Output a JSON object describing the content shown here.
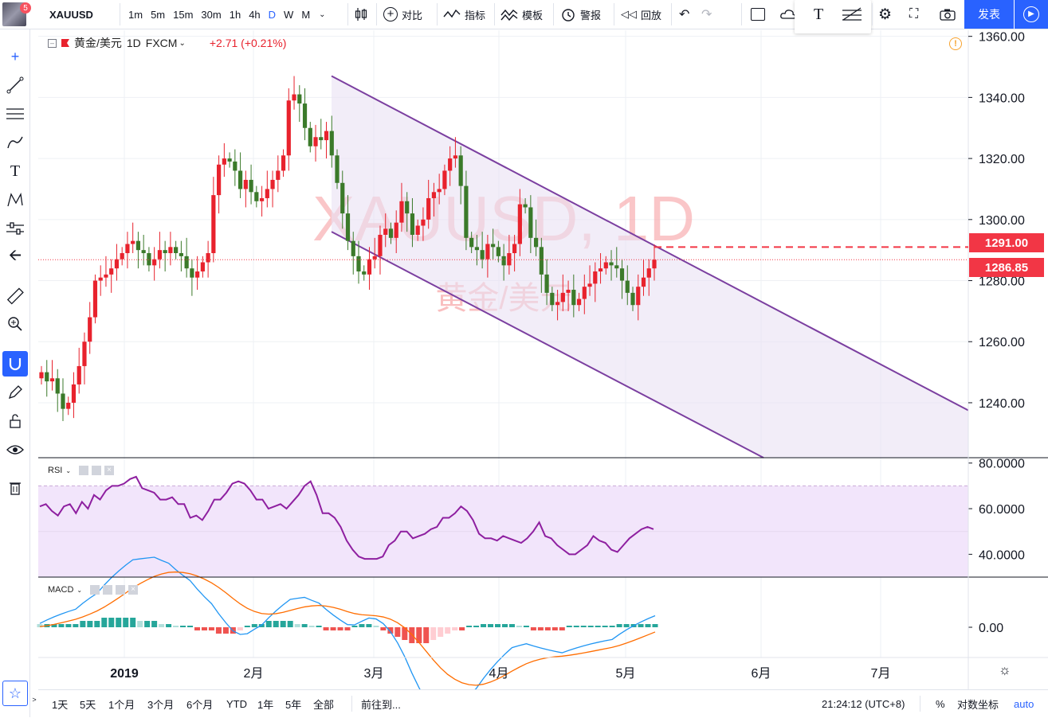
{
  "header": {
    "notification_count": "5",
    "symbol": "XAUUSD",
    "intervals": [
      "1m",
      "5m",
      "15m",
      "30m",
      "1h",
      "4h",
      "D",
      "W",
      "M"
    ],
    "active_interval": "D",
    "compare_label": "对比",
    "indicators_label": "指标",
    "templates_label": "模板",
    "alert_label": "警报",
    "replay_label": "回放",
    "publish_label": "发表"
  },
  "legend": {
    "name": "黄金/美元",
    "interval": "1D",
    "exchange": "FXCM",
    "change": "+2.71 (+0.21%)"
  },
  "watermark": {
    "symbol": "XAUUSD, 1D",
    "name": "黄金/美元"
  },
  "price_axis": {
    "ticks": [
      "1360.00",
      "1340.00",
      "1320.00",
      "1300.00",
      "1280.00",
      "1260.00",
      "1240.00"
    ],
    "alert_price": "1291.00",
    "last_price": "1286.85"
  },
  "rsi": {
    "label": "RSI",
    "ticks": [
      "80.0000",
      "60.0000",
      "40.0000"
    ]
  },
  "macd": {
    "label": "MACD",
    "ticks": [
      "0.00"
    ]
  },
  "time_axis": {
    "labels": [
      "2019",
      "2月",
      "3月",
      "4月",
      "5月",
      "6月",
      "7月"
    ]
  },
  "bottom": {
    "ranges": [
      "1天",
      "5天",
      "1个月",
      "3个月",
      "6个月",
      "YTD",
      "1年",
      "5年",
      "全部"
    ],
    "goto": "前往到...",
    "clock": "21:24:12 (UTC+8)",
    "percent": "%",
    "log": "对数坐标",
    "auto": "auto"
  },
  "colors": {
    "up": "#e8222d",
    "down": "#3b7a2a",
    "channel": "#7b3fa0",
    "rsi": "#8e1fa0",
    "alert": "#f23645"
  },
  "chart_data": {
    "type": "candlestick",
    "title": "XAUUSD, 1D",
    "ylim": [
      1222,
      1362
    ],
    "y_ticks": [
      1340,
      1320,
      1300,
      1280,
      1260,
      1240
    ],
    "x_labels": [
      "2019",
      "2月",
      "3月",
      "4月",
      "5月",
      "6月",
      "7月"
    ],
    "ohlc_close_approx": [
      1250,
      1247,
      1248,
      1243,
      1238,
      1240,
      1246,
      1252,
      1260,
      1268,
      1280,
      1281,
      1282,
      1284,
      1287,
      1289,
      1292,
      1293,
      1290,
      1289,
      1285,
      1287,
      1290,
      1289,
      1291,
      1289,
      1288,
      1284,
      1281,
      1283,
      1286,
      1289,
      1308,
      1318,
      1320,
      1319,
      1316,
      1310,
      1313,
      1309,
      1306,
      1307,
      1310,
      1313,
      1316,
      1321,
      1339,
      1341,
      1338,
      1330,
      1324,
      1327,
      1326,
      1329,
      1321,
      1312,
      1302,
      1293,
      1288,
      1283,
      1282,
      1287,
      1288,
      1295,
      1297,
      1294,
      1299,
      1306,
      1302,
      1295,
      1298,
      1300,
      1307,
      1309,
      1310,
      1316,
      1320,
      1321,
      1311,
      1294,
      1291,
      1290,
      1287,
      1292,
      1291,
      1288,
      1285,
      1289,
      1292,
      1305,
      1304,
      1294,
      1291,
      1282,
      1276,
      1272,
      1273,
      1276,
      1277,
      1272,
      1274,
      1278,
      1279,
      1283,
      1284,
      1286,
      1285,
      1284,
      1280,
      1276,
      1272,
      1278,
      1281,
      1284,
      1286.85
    ],
    "alert_line": 1291.0,
    "last_price": 1286.85,
    "channel": {
      "upper": [
        [
          "2019-02-20",
          1347
        ],
        [
          "2019-07-31",
          1237
        ]
      ],
      "lower": [
        [
          "2019-02-20",
          1296
        ],
        [
          "2019-06-05",
          1222
        ]
      ]
    },
    "rsi": {
      "ylim": [
        30,
        82
      ],
      "levels": [
        70,
        30
      ],
      "values": [
        61,
        62,
        59,
        57,
        61,
        62,
        58,
        63,
        60,
        66,
        64,
        68,
        70,
        70,
        71,
        73,
        74,
        69,
        68,
        67,
        64,
        64,
        65,
        62,
        62,
        56,
        57,
        55,
        59,
        64,
        64,
        67,
        71,
        72,
        71,
        68,
        64,
        64,
        60,
        61,
        62,
        60,
        63,
        66,
        70,
        72,
        66,
        58,
        58,
        56,
        52,
        46,
        42,
        39,
        38,
        38,
        38,
        39,
        44,
        46,
        50,
        50,
        47,
        48,
        49,
        51,
        52,
        56,
        56,
        58,
        61,
        59,
        55,
        49,
        47,
        47,
        46,
        48,
        47,
        46,
        45,
        47,
        50,
        54,
        48,
        47,
        44,
        42,
        40,
        40,
        42,
        44,
        48,
        46,
        45,
        42,
        41,
        44,
        47,
        49,
        51,
        52,
        51
      ],
      "ticks": [
        80,
        60,
        40
      ]
    },
    "macd": {
      "ticks": [
        0
      ],
      "hist": [
        1,
        1,
        1,
        1,
        1,
        1,
        2,
        2,
        2,
        3,
        3,
        3,
        3,
        3,
        2,
        2,
        2,
        1,
        1,
        0,
        0,
        0,
        -1,
        -1,
        -1,
        -2,
        -2,
        -2,
        -1,
        0,
        1,
        1,
        2,
        2,
        2,
        2,
        1,
        1,
        0,
        0,
        -1,
        -1,
        -1,
        -1,
        0,
        1,
        1,
        0,
        -1,
        -2,
        -3,
        -4,
        -5,
        -5,
        -5,
        -4,
        -3,
        -2,
        -1,
        -1,
        0,
        0,
        1,
        1,
        1,
        1,
        1,
        0,
        0,
        -1,
        -1,
        -1,
        -1,
        -1,
        0,
        0,
        0,
        0,
        0,
        0,
        0,
        1,
        1,
        1,
        1,
        1,
        1
      ]
    }
  }
}
